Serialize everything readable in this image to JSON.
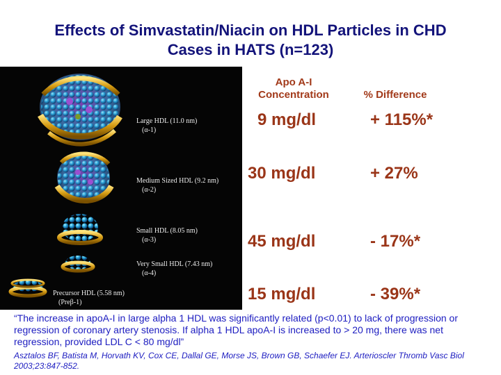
{
  "title": {
    "line1": "Effects of Simvastatin/Niacin on HDL Particles in CHD",
    "line2": "Cases  in HATS (n=123)"
  },
  "headers": {
    "apo_line1": "Apo A-I",
    "apo_line2": "Concentration",
    "difference": "% Difference"
  },
  "particles": [
    {
      "name": "Large HDL (11.0 nm)",
      "sub": "(α-1)",
      "concentration": "9 mg/dl",
      "difference": "+ 115%*"
    },
    {
      "name": "Medium Sized HDL  (9.2 nm)",
      "sub": "(α-2)",
      "concentration": "30 mg/dl",
      "difference": "+ 27%"
    },
    {
      "name": "Small HDL (8.05 nm)",
      "sub": "(α-3)",
      "concentration": "45 mg/dl",
      "difference": "- 17%*"
    },
    {
      "name": "Very Small HDL (7.43 nm)",
      "sub": "(α-4)",
      "concentration": "",
      "difference": ""
    },
    {
      "name": "Precursor HDL (5.58 nm)",
      "sub": "(Preβ-1)",
      "concentration": "15 mg/dl",
      "difference": "- 39%*"
    }
  ],
  "quote": "“The increase in apoA-I in large alpha 1 HDL was significantly related (p<0.01) to lack of progression or regression of coronary artery stenosis. If alpha 1 HDL apoA-I is increased to > 20 mg, there was net regression, provided LDL C < 80 mg/dl”",
  "citation": "Asztalos BF, Batista M, Horvath KV, Cox CE, Dallal GE, Morse JS, Brown GB, Schaefer EJ. Arterioscler Thromb Vasc Biol 2003;23:847-852.",
  "colors": {
    "title": "#13137a",
    "values": "#9a3518",
    "footnote": "#1c1cc0",
    "figure_background": "#050505"
  }
}
